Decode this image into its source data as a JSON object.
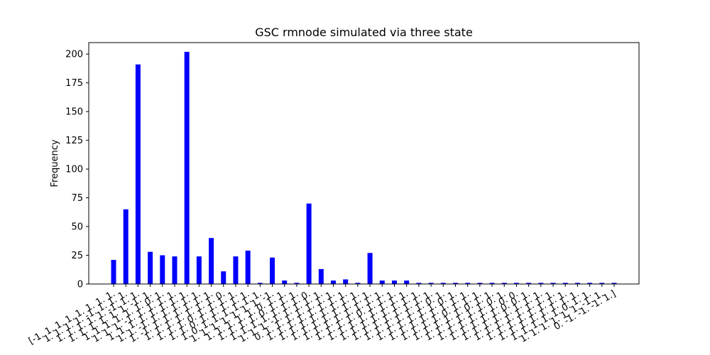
{
  "chart_data": {
    "type": "bar",
    "title": "GSC rmnode simulated via three state",
    "xlabel": "",
    "ylabel": "Frequency",
    "ylim": [
      0,
      210
    ],
    "yticks": [
      0,
      25,
      50,
      75,
      100,
      125,
      150,
      175,
      200
    ],
    "grid": false,
    "bar_color": "#0000ff",
    "categories": [
      "[-1. 1. 1. 1. 1. 1. 1. 1.",
      "1. 1. 1. 1. -1. 1. 1. 1.",
      "1. 1. 1. 1. 1. -1. 1. 1.",
      "1. 1. 1. 1. 1. 1. -1. 1.",
      "1. 1. 1. 1. 1. 1. 0. 1.",
      "1. 1. 1. -1. 1. 1. 1. 1.",
      "1. 1. 1. 1. 1. 1. 1. 1.",
      "1. 1. -1. 1. 1. 1. 1. 1.",
      "1. -1. 1. 1. 1. 1. 1. 1.",
      "1. 1. 1. 1. 1. 1. 1. 0.",
      "1. 1. 1. 0. 1. 1. 1. 1.",
      "1. 1. 0. 1. 1. 1. 1. 1.",
      "1. 0. 1. 1. 1. 1. 1. 1.",
      "1. 1. 1. 1. 1. 1. 1. -1.",
      "1. 1. 1. 1. 1. 0. 1. 1.",
      "1. 1. 1. 1. 0. 1. 1. 1.",
      "1. 1. 1. 1. 1. 1. 1. 0.",
      "1. 1. 1. -1. 1. 1. 1. 1.",
      "0. 1. 1. 1. 1. 1. 1. 1.",
      "1. 1. 1. 1. 1. 1. 1. 1.",
      "1. 1. 1. 1. 1. 1. 1. 1.",
      "1. 1. 1. 1. 1. 1. 1. 1.",
      "1. 1. 1. 1. 1. 1. 1. 1.",
      "1. 1. 1. 1. 0. 1. 1. 1.",
      "1. 1. 1. 1. 1. 1. 1. 1.",
      "1. 1. 1. 1. 1. 1. 1. 1.",
      "1. 1. 1. 1. 1. 1. 1. 1.",
      "1. 1. 1. 1. 1. 1. 0. 1.",
      "1. 1. 1. 1. 1. 1. 0. 1.",
      "1. 1. 1. 1. 1. 1. 1. 1.",
      "1. 1. 1. 1. 0. 1. 1. 1.",
      "1. 1. 1. 1. 1. 0. 1. 1.",
      "1. 1. 1. 1. 1. 1. 0. 1.",
      "1. 1. 1. 1. 1. 1. 0. 0.",
      "1. 1. 1. 1. 1. 0. 0. 1.",
      "1. 1. 1. 1. 1. 1. 1. 1.",
      "1. 1. 1. 1. 1. 1. 1. 1.",
      "1. 1. 1. 1. 1. 1. 1. 1.",
      "1. 1. 1. 1. 1. 1. 1. 1.",
      "1. 1. 1. 1. 1. 0. 1. 1.",
      "1. 1. 1. 1. 1. 1. -1. 1.",
      "0. -1. -1. -1. 1.]"
    ],
    "values": [
      21,
      65,
      191,
      28,
      25,
      24,
      202,
      24,
      40,
      11,
      24,
      29,
      1,
      23,
      3,
      1,
      70,
      13,
      3,
      4,
      1,
      27,
      3,
      3,
      3,
      1,
      1,
      1,
      1,
      1,
      1,
      1,
      1,
      1,
      1,
      1,
      1,
      1,
      1,
      1,
      1,
      1
    ]
  }
}
